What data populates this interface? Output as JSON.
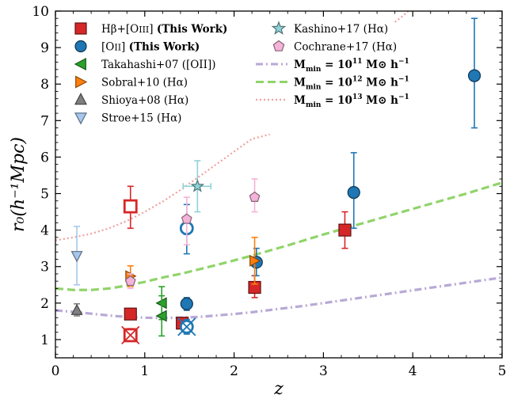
{
  "chart_data": {
    "type": "scatter",
    "xlabel": "z",
    "ylabel": "r₀(h⁻¹Mpc)",
    "xlim": [
      0,
      5
    ],
    "ylim": [
      0.5,
      10
    ],
    "xticks": [
      "0",
      "1",
      "2",
      "3",
      "4",
      "5"
    ],
    "yticks": [
      "1",
      "2",
      "3",
      "4",
      "5",
      "6",
      "7",
      "8",
      "9",
      "10"
    ],
    "grid": false,
    "legend_position": "top",
    "series": [
      {
        "name": "Hβ+[OIII] (This Work)",
        "marker": "square",
        "color": "#d62728",
        "points": [
          {
            "x": 0.84,
            "y": 1.7,
            "ylo": 1.55,
            "yhi": 1.85
          },
          {
            "x": 1.42,
            "y": 1.45,
            "ylo": 1.3,
            "yhi": 1.6
          },
          {
            "x": 2.23,
            "y": 2.43,
            "ylo": 2.15,
            "yhi": 2.75
          },
          {
            "x": 3.24,
            "y": 4.0,
            "ylo": 3.5,
            "yhi": 4.5
          }
        ],
        "open_points": [
          {
            "x": 0.84,
            "y": 4.65,
            "ylo": 4.05,
            "yhi": 5.2
          }
        ],
        "crossed_points": [
          {
            "x": 0.84,
            "y": 1.12,
            "ylo": 0.95,
            "yhi": 1.3
          }
        ]
      },
      {
        "name": "[OII] (This Work)",
        "marker": "circle",
        "color": "#1f77b4",
        "points": [
          {
            "x": 1.47,
            "y": 1.98,
            "ylo": 1.8,
            "yhi": 2.15
          },
          {
            "x": 2.25,
            "y": 3.12,
            "ylo": 2.75,
            "yhi": 3.5
          },
          {
            "x": 3.34,
            "y": 5.03,
            "ylo": 4.05,
            "yhi": 6.12
          },
          {
            "x": 4.69,
            "y": 8.23,
            "ylo": 6.8,
            "yhi": 9.8
          }
        ],
        "open_points": [
          {
            "x": 1.47,
            "y": 4.05,
            "ylo": 3.35,
            "yhi": 4.7
          }
        ],
        "crossed_points": [
          {
            "x": 1.47,
            "y": 1.35,
            "ylo": 1.15,
            "yhi": 1.55
          }
        ]
      },
      {
        "name": "Takahashi+07 ([OII])",
        "marker": "triangle-left",
        "color": "#2ca02c",
        "points": [
          {
            "x": 1.19,
            "y": 2.0,
            "ylo": 1.55,
            "yhi": 2.45
          },
          {
            "x": 1.19,
            "y": 1.65,
            "ylo": 1.1,
            "yhi": 2.2
          }
        ]
      },
      {
        "name": "Sobral+10 (Hα)",
        "marker": "triangle-right",
        "color": "#ff7f0e",
        "points": [
          {
            "x": 0.84,
            "y": 2.74,
            "ylo": 2.45,
            "yhi": 3.02
          },
          {
            "x": 2.23,
            "y": 3.16,
            "ylo": 2.52,
            "yhi": 3.8
          }
        ]
      },
      {
        "name": "Shioya+08 (Hα)",
        "marker": "triangle-up",
        "color": "#7f7f7f",
        "points": [
          {
            "x": 0.24,
            "y": 1.8,
            "ylo": 1.65,
            "yhi": 1.98
          }
        ]
      },
      {
        "name": "Stroe+15 (Hα)",
        "marker": "triangle-down",
        "color": "#a6c8ec",
        "points": [
          {
            "x": 0.24,
            "y": 3.3,
            "ylo": 2.5,
            "yhi": 4.1
          }
        ]
      },
      {
        "name": "Kashino+17 (Hα)",
        "marker": "star",
        "color": "#8fd3d7",
        "points": [
          {
            "x": 1.59,
            "y": 5.2,
            "ylo": 4.5,
            "yhi": 5.9,
            "xlo": 1.43,
            "xhi": 1.74
          }
        ]
      },
      {
        "name": "Cochrane+17 (Hα)",
        "marker": "pentagon",
        "color": "#f4b3d8",
        "points": [
          {
            "x": 0.84,
            "y": 2.6,
            "ylo": 2.4,
            "yhi": 2.8
          },
          {
            "x": 1.47,
            "y": 4.3,
            "ylo": 3.6,
            "yhi": 4.9
          },
          {
            "x": 2.23,
            "y": 4.9,
            "ylo": 4.5,
            "yhi": 5.4
          }
        ]
      }
    ],
    "curves": [
      {
        "name": "M_min = 10^11 M⊙ h^-1",
        "style": "dashdot",
        "color": "#b8a9d6",
        "x": [
          0.0,
          0.2,
          0.4,
          0.6,
          0.8,
          1.0,
          1.2,
          1.4,
          1.6,
          1.8,
          2.0,
          2.2,
          2.4,
          2.6,
          2.8,
          3.0,
          3.2,
          3.4,
          3.6,
          3.8,
          4.0,
          4.2,
          4.4,
          4.6,
          4.8,
          5.0
        ],
        "y": [
          1.8,
          1.76,
          1.71,
          1.66,
          1.62,
          1.6,
          1.59,
          1.6,
          1.62,
          1.66,
          1.7,
          1.75,
          1.81,
          1.87,
          1.93,
          2.0,
          2.07,
          2.14,
          2.21,
          2.28,
          2.35,
          2.42,
          2.49,
          2.56,
          2.63,
          2.7
        ]
      },
      {
        "name": "M_min = 10^12 M⊙ h^-1",
        "style": "dashed",
        "color": "#90d46a",
        "x": [
          0.0,
          0.2,
          0.4,
          0.6,
          0.8,
          1.0,
          1.2,
          1.4,
          1.6,
          1.8,
          2.0,
          2.2,
          2.4,
          2.6,
          2.8,
          3.0,
          3.2,
          3.4,
          3.6,
          3.8,
          4.0,
          4.2,
          4.4,
          4.6,
          4.8,
          5.0
        ],
        "y": [
          2.4,
          2.36,
          2.36,
          2.4,
          2.48,
          2.58,
          2.7,
          2.8,
          2.92,
          3.04,
          3.17,
          3.3,
          3.44,
          3.58,
          3.73,
          3.88,
          4.02,
          4.16,
          4.3,
          4.44,
          4.58,
          4.72,
          4.86,
          5.0,
          5.15,
          5.3
        ]
      },
      {
        "name": "M_min = 10^13 M⊙ h^-1",
        "style": "dotted",
        "color": "#f0a0a0",
        "x": [
          0.0,
          0.2,
          0.4,
          0.6,
          0.8,
          1.0,
          1.2,
          1.4,
          1.6,
          1.8,
          2.0,
          2.2,
          2.4
        ],
        "y": [
          3.72,
          3.8,
          3.9,
          4.05,
          4.25,
          4.5,
          4.78,
          5.1,
          5.45,
          5.8,
          6.15,
          6.5,
          6.62
        ],
        "x2": [
          3.8,
          3.88,
          3.95
        ],
        "y2": [
          9.7,
          9.85,
          10.0
        ]
      }
    ],
    "legend_left": [
      {
        "series": 0,
        "pre": "Hβ+[O",
        "roman": "III",
        "post": "] ",
        "bold": "(This Work)"
      },
      {
        "series": 1,
        "pre": "[O",
        "roman": "II",
        "post": "] ",
        "bold": "(This Work)"
      },
      {
        "series": 2,
        "text": "Takahashi+07 ([OII])"
      },
      {
        "series": 3,
        "text": "Sobral+10 (Hα)"
      },
      {
        "series": 4,
        "text": "Shioya+08 (Hα)"
      },
      {
        "series": 5,
        "text": "Stroe+15 (Hα)"
      }
    ],
    "legend_right": [
      {
        "series": 6,
        "text": "Kashino+17 (Hα)"
      },
      {
        "series": 7,
        "text": "Cochrane+17 (Hα)"
      },
      {
        "curve": 0,
        "pre": "M",
        "sub": "min",
        "mid": " = 10",
        "sup": "11",
        "post": " M⊙ h",
        "sup2": "−1"
      },
      {
        "curve": 1,
        "pre": "M",
        "sub": "min",
        "mid": " = 10",
        "sup": "12",
        "post": " M⊙ h",
        "sup2": "−1"
      },
      {
        "curve": 2,
        "pre": "M",
        "sub": "min",
        "mid": " = 10",
        "sup": "13",
        "post": " M⊙ h",
        "sup2": "−1"
      }
    ]
  }
}
